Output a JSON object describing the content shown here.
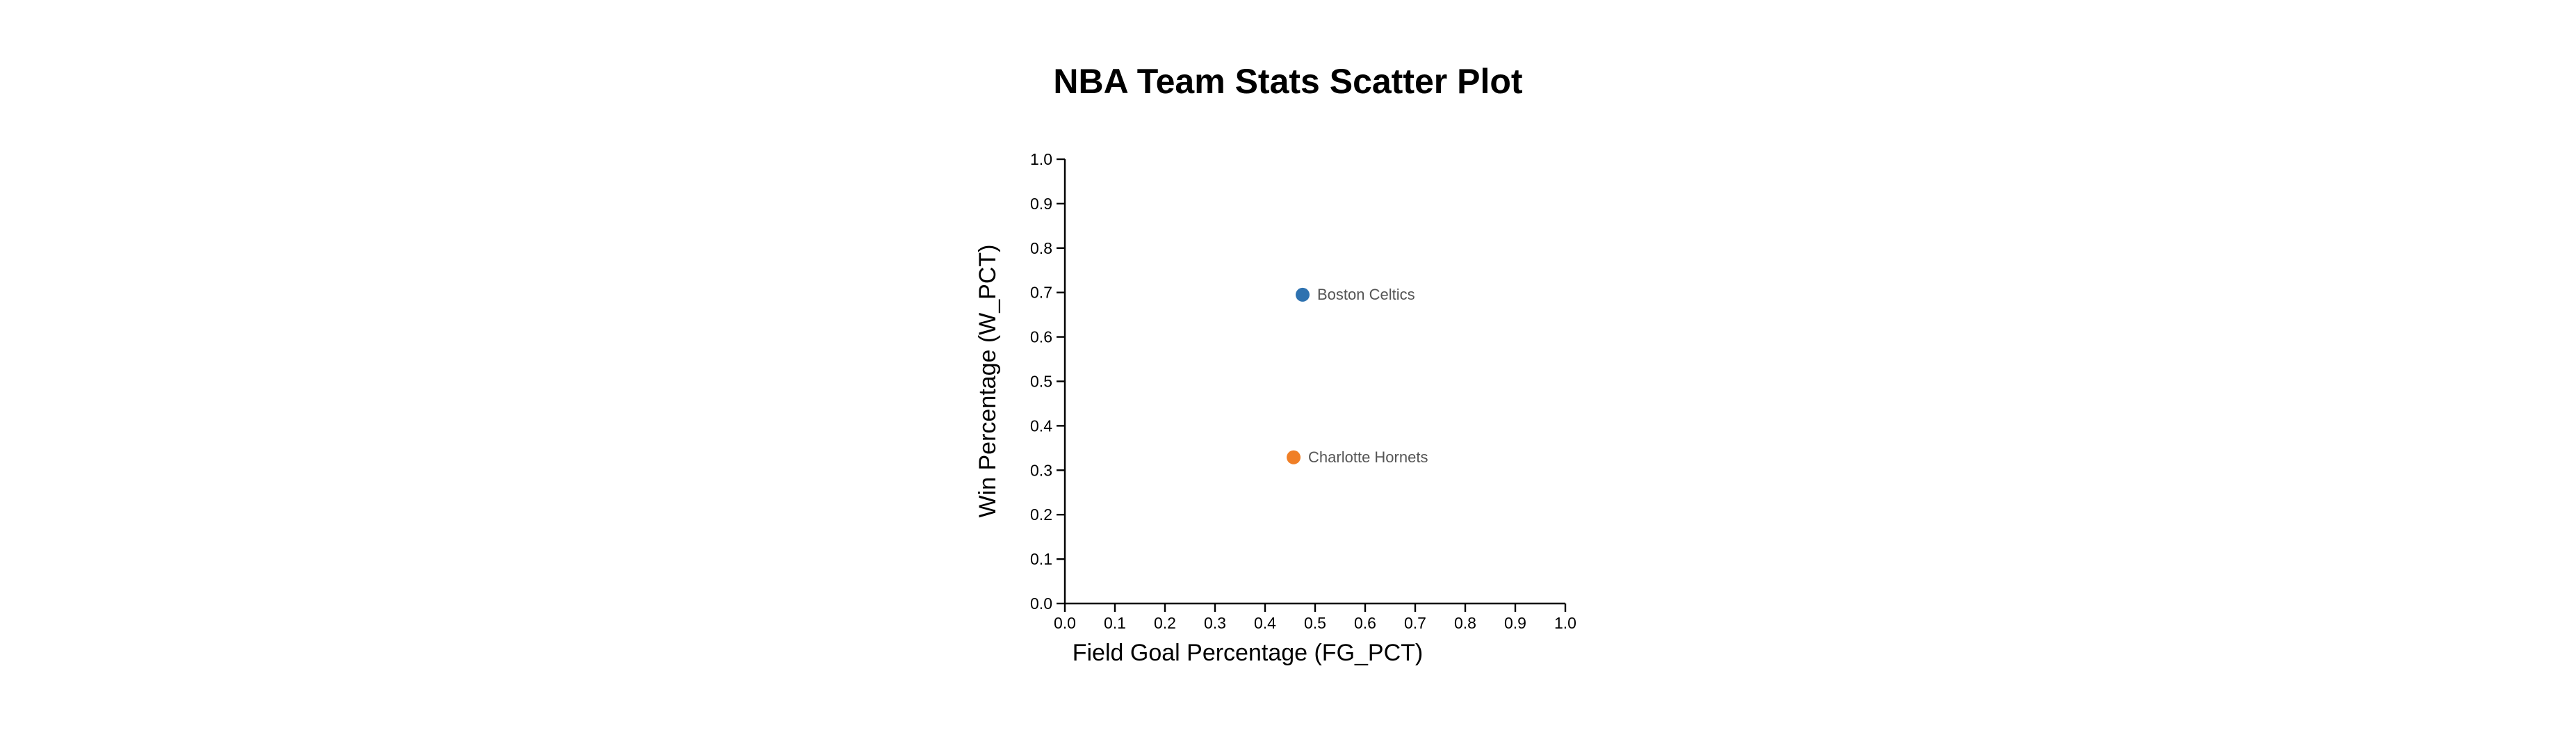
{
  "chart_data": {
    "type": "scatter",
    "title": "NBA Team Stats Scatter Plot",
    "xlabel": "Field Goal Percentage (FG_PCT)",
    "ylabel": "Win Percentage (W_PCT)",
    "xlim": [
      0,
      1
    ],
    "ylim": [
      0,
      1
    ],
    "x_ticks": [
      "0.0",
      "0.1",
      "0.2",
      "0.3",
      "0.4",
      "0.5",
      "0.6",
      "0.7",
      "0.8",
      "0.9",
      "1.0"
    ],
    "y_ticks": [
      "0.0",
      "0.1",
      "0.2",
      "0.3",
      "0.4",
      "0.5",
      "0.6",
      "0.7",
      "0.8",
      "0.9",
      "1.0"
    ],
    "grid": false,
    "points": [
      {
        "label": "Boston Celtics",
        "x": 0.475,
        "y": 0.695,
        "color": "#2e72b0"
      },
      {
        "label": "Charlotte Hornets",
        "x": 0.457,
        "y": 0.329,
        "color": "#f07f26"
      }
    ]
  }
}
